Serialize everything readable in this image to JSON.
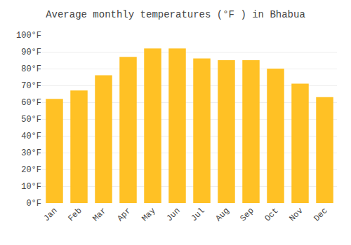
{
  "chart_data": {
    "type": "bar",
    "title": "Average monthly temperatures (°F ) in Bhabua",
    "categories": [
      "Jan",
      "Feb",
      "Mar",
      "Apr",
      "May",
      "Jun",
      "Jul",
      "Aug",
      "Sep",
      "Oct",
      "Nov",
      "Dec"
    ],
    "values": [
      62,
      67,
      76,
      87,
      92,
      92,
      86,
      85,
      85,
      80,
      71,
      63
    ],
    "color": "#FFC125",
    "ylim": [
      0,
      100
    ],
    "yticks": [
      {
        "value": 0,
        "label": "0°F"
      },
      {
        "value": 10,
        "label": "10°F"
      },
      {
        "value": 20,
        "label": "20°F"
      },
      {
        "value": 30,
        "label": "30°F"
      },
      {
        "value": 40,
        "label": "40°F"
      },
      {
        "value": 50,
        "label": "50°F"
      },
      {
        "value": 60,
        "label": "60°F"
      },
      {
        "value": 70,
        "label": "70°F"
      },
      {
        "value": 80,
        "label": "80°F"
      },
      {
        "value": 90,
        "label": "90°F"
      },
      {
        "value": 100,
        "label": "100°F"
      }
    ],
    "grid": true
  }
}
